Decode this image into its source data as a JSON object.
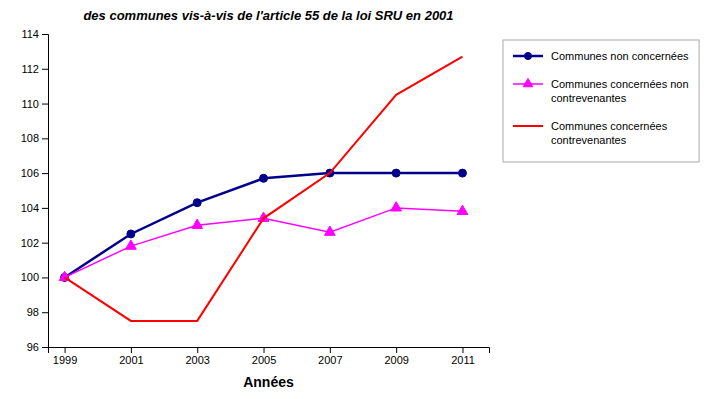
{
  "chart_data": {
    "type": "line",
    "title": "des communes vis-à-vis de l'article 55 de la loi SRU en 2001",
    "x_label": "Années",
    "x": [
      1999,
      2001,
      2003,
      2005,
      2007,
      2009,
      2011
    ],
    "series": [
      {
        "name": "Communes non concernées",
        "color": "#00008B",
        "marker": "circle",
        "values": [
          100,
          102.5,
          104.3,
          105.7,
          106.0,
          106.0,
          106.0
        ]
      },
      {
        "name": "Communes concernées non\ncontrevenantes",
        "color": "#FF00FF",
        "marker": "triangle",
        "values": [
          100,
          101.8,
          103.0,
          103.4,
          102.6,
          104.0,
          103.8
        ]
      },
      {
        "name": "Communes concernées\ncontrevenantes",
        "color": "#FF0000",
        "values": [
          100,
          97.5,
          97.5,
          103.4,
          106.0,
          110.5,
          112.7
        ]
      }
    ],
    "xlim": [
      1998.5,
      2011.8
    ],
    "xticks": [
      1999,
      2001,
      2003,
      2005,
      2007,
      2009,
      2011
    ],
    "ylim": [
      96,
      114
    ],
    "yticks": [
      96,
      98,
      100,
      102,
      104,
      106,
      108,
      110,
      112,
      114
    ],
    "grid": false,
    "legend": "right"
  }
}
